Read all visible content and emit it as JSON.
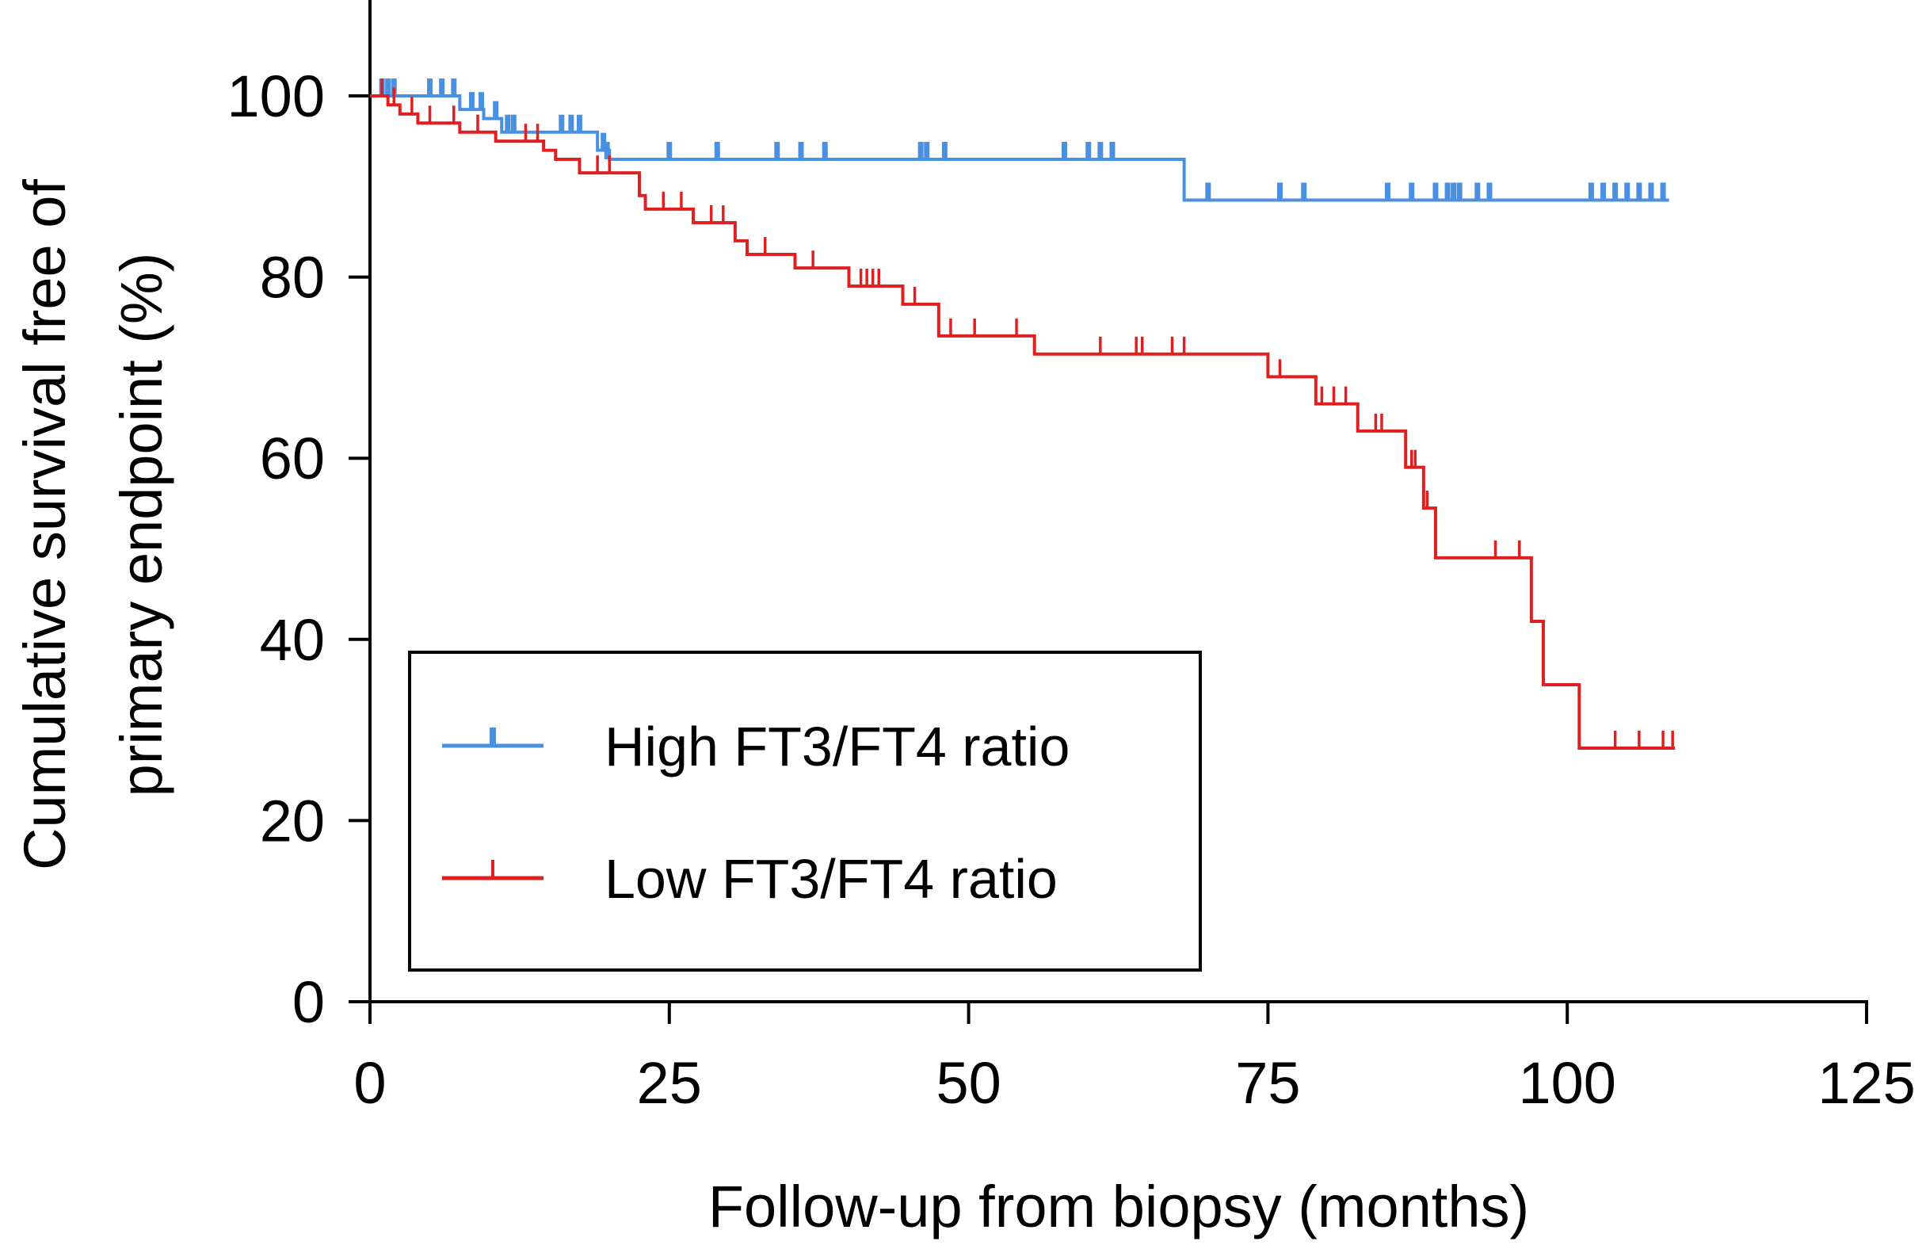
{
  "chart_data": {
    "type": "line",
    "subtype": "kaplan-meier",
    "title": "",
    "xlabel": "Follow-up from biopsy (months)",
    "ylabel_lines": [
      "Cumulative survival free of",
      "primary endpoint (%)"
    ],
    "xlim": [
      0,
      125
    ],
    "ylim": [
      0,
      100
    ],
    "xticks": [
      0,
      25,
      50,
      75,
      100,
      125
    ],
    "yticks": [
      0,
      20,
      40,
      60,
      80,
      100
    ],
    "x_tick_labels": [
      "0",
      "25",
      "50",
      "75",
      "100",
      "125"
    ],
    "y_tick_labels": [
      "0",
      "20",
      "40",
      "60",
      "80",
      "100"
    ],
    "legend_position": "lower-left",
    "series": [
      {
        "name": "High FT3/FT4 ratio",
        "color": "#4a90e2",
        "steps": [
          [
            0,
            100
          ],
          [
            7.5,
            98.5
          ],
          [
            9.5,
            97.5
          ],
          [
            11,
            96
          ],
          [
            19,
            94
          ],
          [
            20,
            93
          ],
          [
            68,
            88.5
          ],
          [
            108.5,
            88.5
          ]
        ],
        "censored": [
          [
            1,
            100
          ],
          [
            1.5,
            100
          ],
          [
            2,
            100
          ],
          [
            5,
            100
          ],
          [
            6,
            100
          ],
          [
            7,
            100
          ],
          [
            8.5,
            98.5
          ],
          [
            9.3,
            98.5
          ],
          [
            10.5,
            97.5
          ],
          [
            11.5,
            96
          ],
          [
            12,
            96
          ],
          [
            16,
            96
          ],
          [
            16.8,
            96
          ],
          [
            17.5,
            96
          ],
          [
            19.5,
            94
          ],
          [
            19.8,
            93
          ],
          [
            25,
            93
          ],
          [
            29,
            93
          ],
          [
            34,
            93
          ],
          [
            36,
            93
          ],
          [
            38,
            93
          ],
          [
            46,
            93
          ],
          [
            46.5,
            93
          ],
          [
            48,
            93
          ],
          [
            58,
            93
          ],
          [
            60,
            93
          ],
          [
            61,
            93
          ],
          [
            62,
            93
          ],
          [
            70,
            88.5
          ],
          [
            76,
            88.5
          ],
          [
            78,
            88.5
          ],
          [
            85,
            88.5
          ],
          [
            87,
            88.5
          ],
          [
            89,
            88.5
          ],
          [
            90,
            88.5
          ],
          [
            90.5,
            88.5
          ],
          [
            91,
            88.5
          ],
          [
            92.5,
            88.5
          ],
          [
            93.5,
            88.5
          ],
          [
            102,
            88.5
          ],
          [
            103,
            88.5
          ],
          [
            104,
            88.5
          ],
          [
            105,
            88.5
          ],
          [
            106,
            88.5
          ],
          [
            107,
            88.5
          ],
          [
            108,
            88.5
          ]
        ]
      },
      {
        "name": "Low FT3/FT4 ratio",
        "color": "#e02020",
        "steps": [
          [
            0,
            100
          ],
          [
            1.5,
            99
          ],
          [
            2.5,
            98
          ],
          [
            4,
            97
          ],
          [
            7.5,
            96
          ],
          [
            10.5,
            95
          ],
          [
            14.5,
            94
          ],
          [
            15.5,
            93
          ],
          [
            17.5,
            91.5
          ],
          [
            22.5,
            89
          ],
          [
            23,
            87.5
          ],
          [
            27,
            86
          ],
          [
            30.5,
            84
          ],
          [
            31.5,
            82.5
          ],
          [
            35.5,
            81
          ],
          [
            40,
            79
          ],
          [
            44.5,
            77
          ],
          [
            47.5,
            73.5
          ],
          [
            55.5,
            71.5
          ],
          [
            75,
            69
          ],
          [
            79,
            66
          ],
          [
            82.5,
            63
          ],
          [
            86.5,
            59
          ],
          [
            88,
            54.5
          ],
          [
            89,
            49
          ],
          [
            97,
            42
          ],
          [
            98,
            35
          ],
          [
            101,
            28
          ],
          [
            109,
            28
          ]
        ],
        "censored": [
          [
            1,
            100
          ],
          [
            2,
            99
          ],
          [
            3.5,
            98
          ],
          [
            5,
            97
          ],
          [
            7,
            97
          ],
          [
            9,
            96
          ],
          [
            13,
            95
          ],
          [
            14,
            95
          ],
          [
            19,
            91.5
          ],
          [
            20,
            91.5
          ],
          [
            24.5,
            87.5
          ],
          [
            26,
            87.5
          ],
          [
            28.5,
            86
          ],
          [
            29.5,
            86
          ],
          [
            33,
            82.5
          ],
          [
            37,
            81
          ],
          [
            41,
            79
          ],
          [
            41.5,
            79
          ],
          [
            42,
            79
          ],
          [
            42.5,
            79
          ],
          [
            45.5,
            77
          ],
          [
            48.5,
            73.5
          ],
          [
            50.5,
            73.5
          ],
          [
            54,
            73.5
          ],
          [
            61,
            71.5
          ],
          [
            64,
            71.5
          ],
          [
            64.5,
            71.5
          ],
          [
            67,
            71.5
          ],
          [
            68,
            71.5
          ],
          [
            76,
            69
          ],
          [
            79.5,
            66
          ],
          [
            80.5,
            66
          ],
          [
            81.5,
            66
          ],
          [
            84,
            63
          ],
          [
            84.5,
            63
          ],
          [
            87,
            59
          ],
          [
            87.3,
            59
          ],
          [
            88.3,
            54.5
          ],
          [
            94,
            49
          ],
          [
            96,
            49
          ],
          [
            104,
            28
          ],
          [
            106,
            28
          ],
          [
            108,
            28
          ],
          [
            108.8,
            28
          ]
        ]
      }
    ]
  }
}
